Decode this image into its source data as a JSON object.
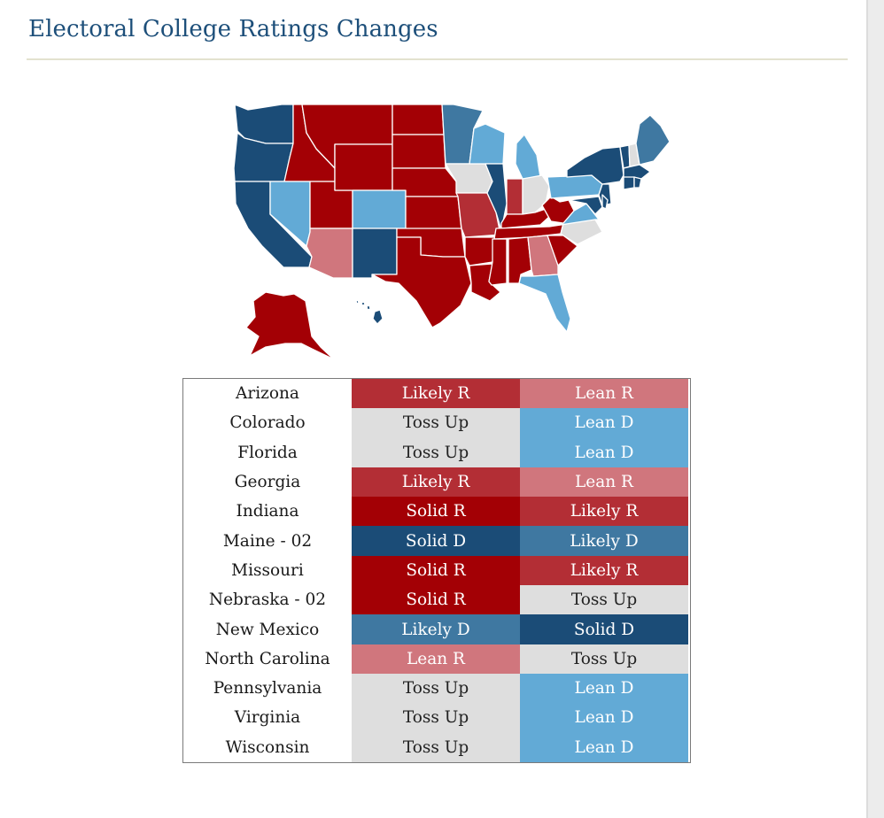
{
  "title": "Electoral College Ratings Changes",
  "colors": {
    "Solid R": "#a30005",
    "Likely R": "#b32e35",
    "Lean R": "#d0767d",
    "Toss Up": "#dedede",
    "Lean D": "#62aad6",
    "Likely D": "#3f78a1",
    "Solid D": "#1b4c77"
  },
  "rows": [
    {
      "state": "Arizona",
      "from": "Likely R",
      "to": "Lean R"
    },
    {
      "state": "Colorado",
      "from": "Toss Up",
      "to": "Lean D"
    },
    {
      "state": "Florida",
      "from": "Toss Up",
      "to": "Lean D"
    },
    {
      "state": "Georgia",
      "from": "Likely R",
      "to": "Lean R"
    },
    {
      "state": "Indiana",
      "from": "Solid R",
      "to": "Likely R"
    },
    {
      "state": "Maine - 02",
      "from": "Solid D",
      "to": "Likely D"
    },
    {
      "state": "Missouri",
      "from": "Solid R",
      "to": "Likely R"
    },
    {
      "state": "Nebraska - 02",
      "from": "Solid R",
      "to": "Toss Up"
    },
    {
      "state": "New Mexico",
      "from": "Likely D",
      "to": "Solid D"
    },
    {
      "state": "North Carolina",
      "from": "Lean R",
      "to": "Toss Up"
    },
    {
      "state": "Pennsylvania",
      "from": "Toss Up",
      "to": "Lean D"
    },
    {
      "state": "Virginia",
      "from": "Toss Up",
      "to": "Lean D"
    },
    {
      "state": "Wisconsin",
      "from": "Toss Up",
      "to": "Lean D"
    }
  ],
  "map_states": {
    "WA": "Solid D",
    "OR": "Solid D",
    "CA": "Solid D",
    "ID": "Solid R",
    "NV": "Lean D",
    "UT": "Solid R",
    "AZ": "Lean R",
    "MT": "Solid R",
    "WY": "Solid R",
    "CO": "Lean D",
    "NM": "Solid D",
    "ND": "Solid R",
    "SD": "Solid R",
    "NE": "Solid R",
    "KS": "Solid R",
    "OK": "Solid R",
    "TX": "Solid R",
    "MN": "Likely D",
    "IA": "Toss Up",
    "MO": "Likely R",
    "AR": "Solid R",
    "LA": "Solid R",
    "WI": "Lean D",
    "IL": "Solid D",
    "MI": "Lean D",
    "IN": "Likely R",
    "OH": "Toss Up",
    "KY": "Solid R",
    "TN": "Solid R",
    "MS": "Solid R",
    "AL": "Solid R",
    "GA": "Lean R",
    "FL": "Lean D",
    "SC": "Solid R",
    "NC": "Toss Up",
    "VA": "Lean D",
    "WV": "Solid R",
    "PA": "Lean D",
    "NY": "Solid D",
    "VT": "Solid D",
    "NH": "Toss Up",
    "ME": "Likely D",
    "MA": "Solid D",
    "CT": "Solid D",
    "RI": "Solid D",
    "NJ": "Solid D",
    "DE": "Solid D",
    "MD": "Solid D",
    "AK": "Solid R",
    "HI": "Solid D"
  }
}
